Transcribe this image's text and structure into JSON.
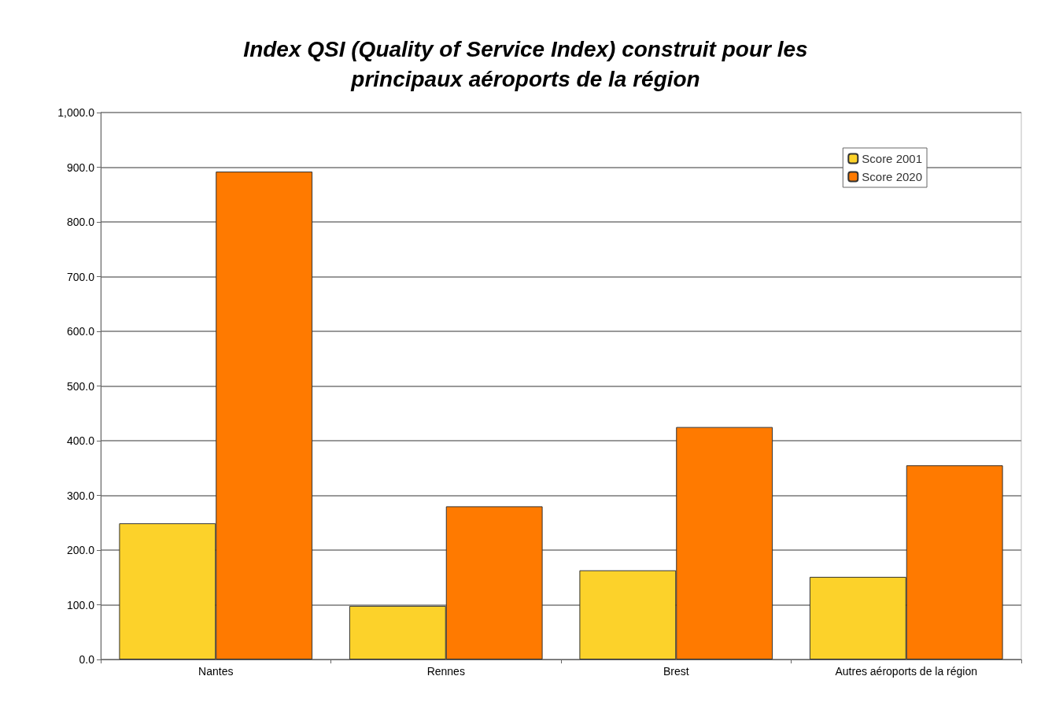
{
  "chart_data": {
    "type": "bar",
    "title": "Index QSI (Quality of Service Index) construit pour les\nprincipaux aéroports de la région",
    "categories": [
      "Nantes",
      "Rennes",
      "Brest",
      "Autres aéroports de la région"
    ],
    "series": [
      {
        "name": "Score 2001",
        "color": "#fcd22a",
        "values": [
          249,
          98,
          163,
          151
        ]
      },
      {
        "name": "Score 2020",
        "color": "#ff7a00",
        "values": [
          892,
          280,
          425,
          355
        ]
      }
    ],
    "ylim": [
      0,
      1000
    ],
    "yticks": [
      {
        "value": 0,
        "label": "0.0"
      },
      {
        "value": 100,
        "label": "100.0"
      },
      {
        "value": 200,
        "label": "200.0"
      },
      {
        "value": 300,
        "label": "300.0"
      },
      {
        "value": 400,
        "label": "400.0"
      },
      {
        "value": 500,
        "label": "500.0"
      },
      {
        "value": 600,
        "label": "600.0"
      },
      {
        "value": 700,
        "label": "700.0"
      },
      {
        "value": 800,
        "label": "800.0"
      },
      {
        "value": 900,
        "label": "900.0"
      },
      {
        "value": 1000,
        "label": "1,000.0"
      }
    ],
    "grid": "y",
    "legend": "top right"
  }
}
